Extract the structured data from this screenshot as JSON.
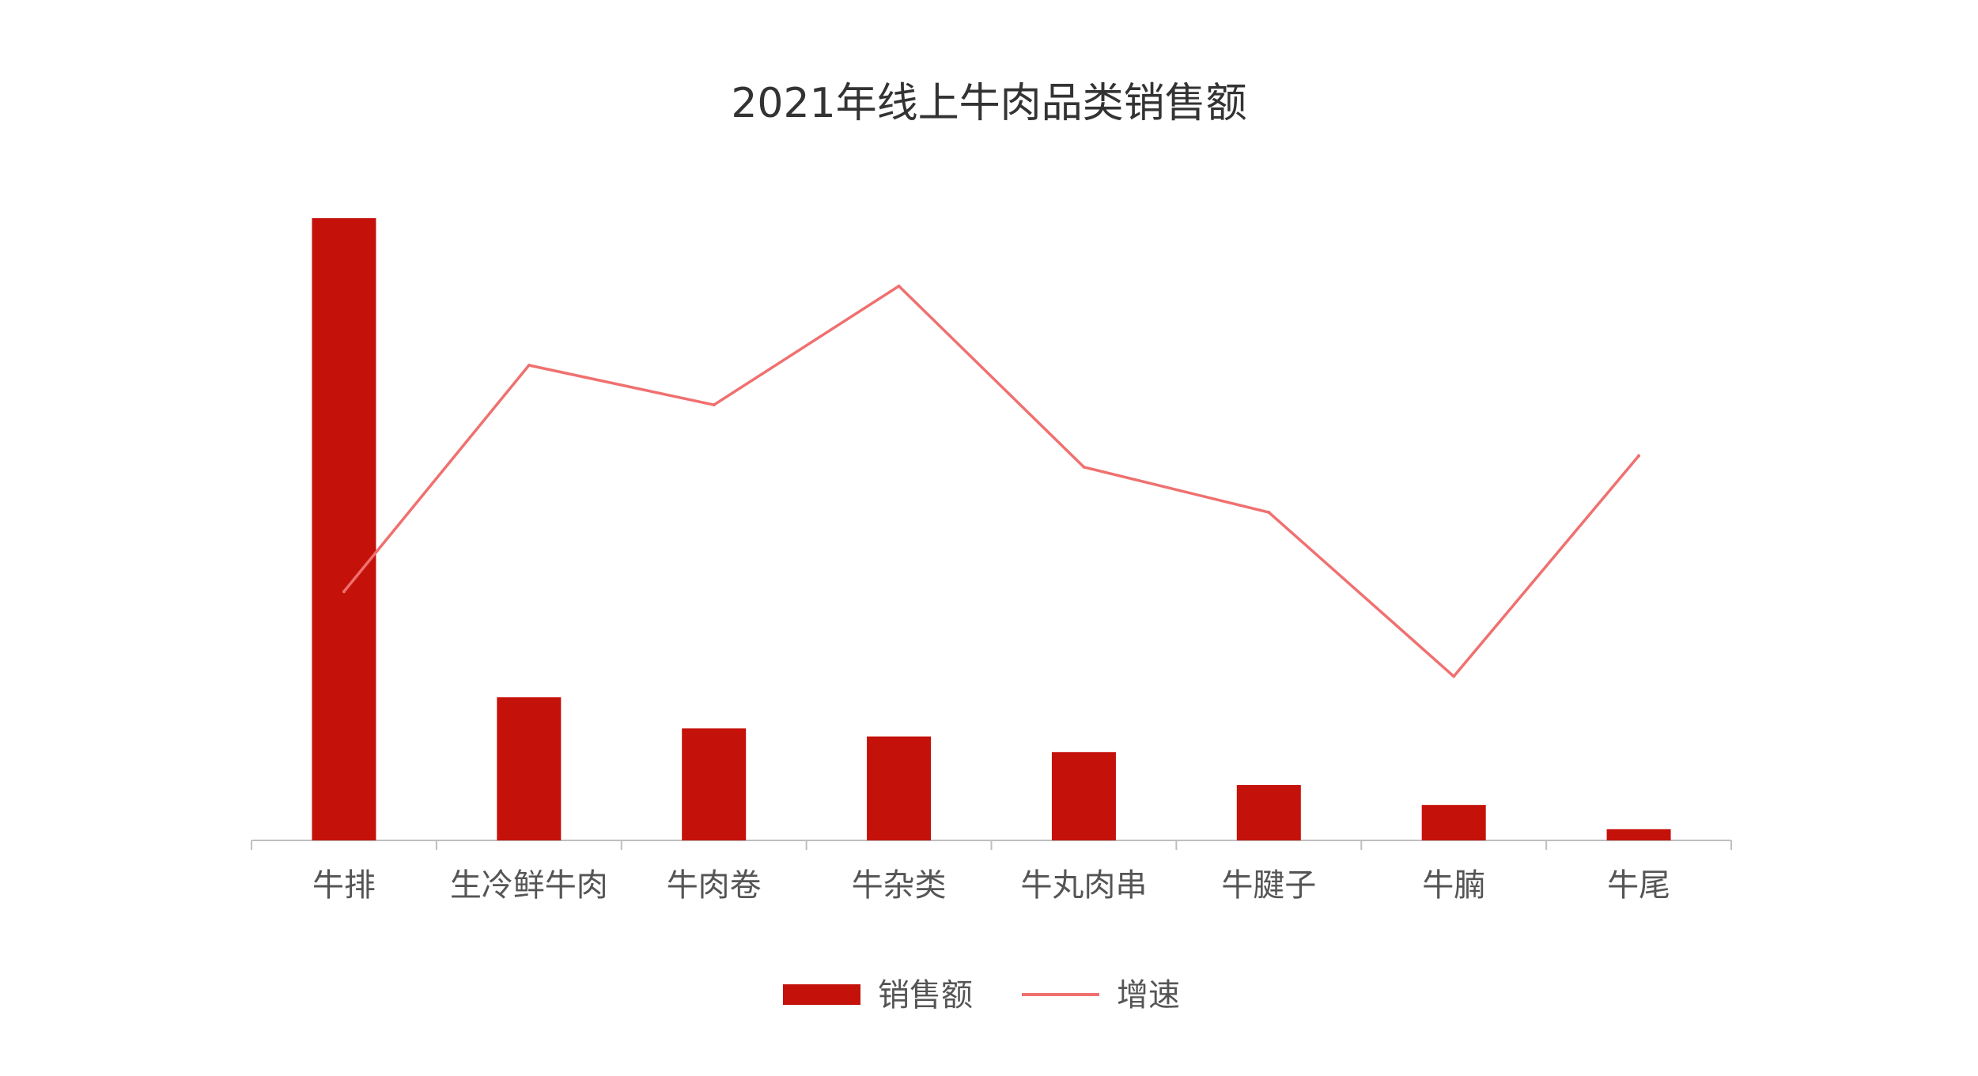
{
  "chart_data": {
    "type": "bar",
    "title": "2021年线上牛肉品类销售额",
    "categories": [
      "牛排",
      "生冷鲜牛肉",
      "牛肉卷",
      "牛杂类",
      "牛丸肉串",
      "牛腱子",
      "牛腩",
      "牛尾"
    ],
    "series": [
      {
        "name": "销售额",
        "type": "bar",
        "axis": "left",
        "color": "#c4120a",
        "values": [
          100,
          23,
          18,
          16.7,
          14.2,
          8.9,
          5.7,
          1.8
        ]
      },
      {
        "name": "增速",
        "type": "line",
        "axis": "right",
        "color": "#f07070",
        "values": [
          22,
          42,
          38.5,
          49,
          33,
          29,
          14.5,
          34
        ]
      }
    ],
    "ylim": [
      0,
      100
    ],
    "ylim_right": [
      0,
      55
    ],
    "xlabel": "",
    "ylabel": "",
    "grid": false,
    "legend": "bottom"
  }
}
